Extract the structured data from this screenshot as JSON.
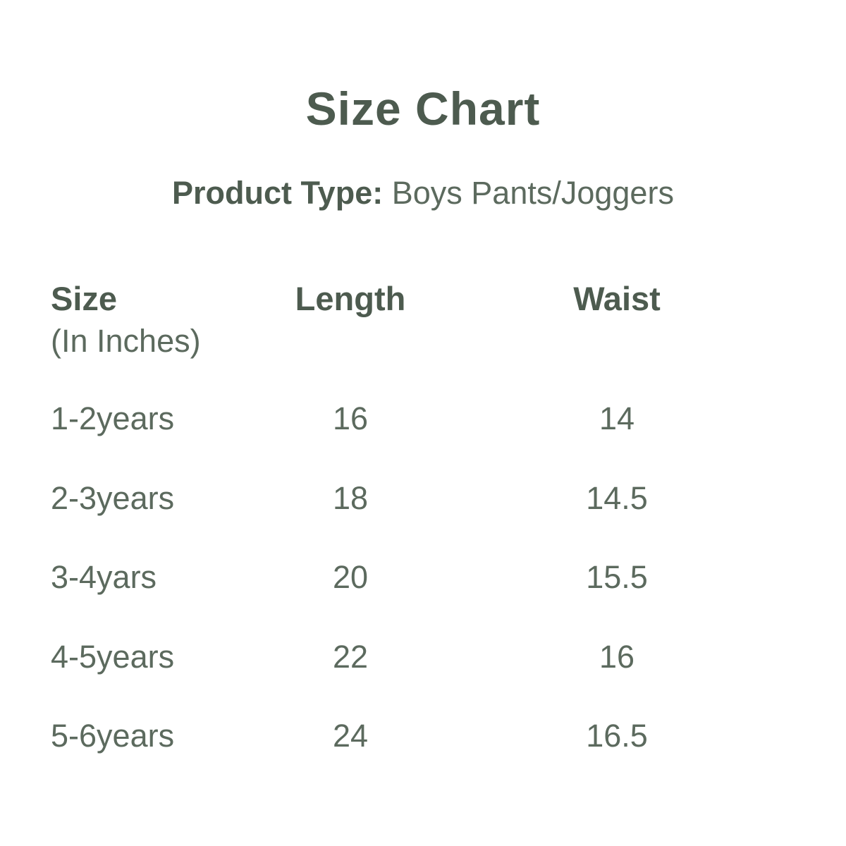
{
  "colors": {
    "heading": "#4d5b4f",
    "body_text": "#5c6a5e",
    "background": "#ffffff"
  },
  "chart_data": {
    "type": "table",
    "title": "Size Chart",
    "subtitle_label": "Product Type:",
    "subtitle_value": "Boys Pants/Joggers",
    "columns": [
      {
        "label": "Size",
        "sublabel": "(In Inches)"
      },
      {
        "label": "Length"
      },
      {
        "label": "Waist"
      }
    ],
    "rows": [
      {
        "size": "1-2years",
        "length": "16",
        "waist": "14"
      },
      {
        "size": "2-3years",
        "length": "18",
        "waist": "14.5"
      },
      {
        "size": "3-4yars",
        "length": "20",
        "waist": "15.5"
      },
      {
        "size": "4-5years",
        "length": "22",
        "waist": "16"
      },
      {
        "size": "5-6years",
        "length": "24",
        "waist": "16.5"
      }
    ]
  }
}
